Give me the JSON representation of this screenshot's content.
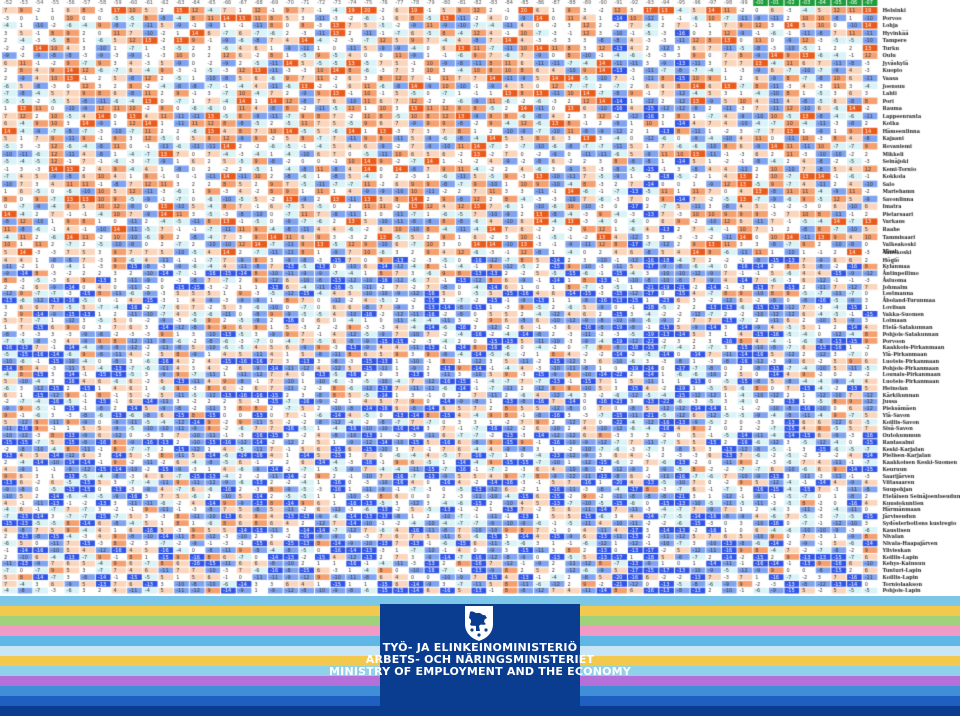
{
  "table": {
    "years": [
      "-52",
      "-53",
      "-54",
      "-55",
      "-56",
      "-57",
      "-58",
      "-59",
      "-60",
      "-61",
      "-62",
      "-63",
      "-64",
      "-65",
      "-66",
      "-67",
      "-68",
      "-69",
      "-70",
      "-71",
      "-72",
      "-73",
      "-74",
      "-75",
      "-76",
      "-77",
      "-78",
      "-79",
      "-80",
      "-81",
      "-82",
      "-83",
      "-84",
      "-85",
      "-86",
      "-87",
      "-88",
      "-89",
      "-90",
      "-91",
      "-92",
      "-93",
      "-94",
      "-95",
      "-96",
      "-97",
      "-98",
      "-99",
      "-00",
      "-01",
      "-02",
      "-03",
      "-04",
      "-05",
      "-06",
      "-07"
    ],
    "regions_top": [
      "Helsinki",
      "Porvoo",
      "Lohja",
      "Hyvinkää",
      "Tampere",
      "Turku",
      "Oulu",
      "Jyväskylä",
      "Kuopio",
      "Vaasa",
      "Joensuu",
      "Lahti",
      "Pori",
      "Rauma",
      "Lappeenranta",
      "Kotka",
      "Hämeenlinna",
      "Kajaani",
      "Rovaniemi",
      "Mikkeli",
      "Seinäjoki",
      "Kemi-Tornio",
      "Kokkola",
      "Salo",
      "Mariehamn",
      "Savonlinna",
      "Imatra",
      "Pietarsaari",
      "Varkaus",
      "Raahe",
      "Tammisaari",
      "Valkeakoski",
      "Äänekoski"
    ],
    "region_label": "Maat",
    "regions_bottom": [
      "Höglö",
      "Kylänmaa",
      "Åntinpeilimo",
      "Åsluoma",
      "Johmalm",
      "Lestmanna",
      "Åboland-Turunmaa",
      "Loviisan",
      "Vakka-Suomen",
      "Loimaan",
      "Etelä-Satakunnan",
      "Pohjois-Satakunnan",
      "Porvoon",
      "Kaakkois-Pirkanmaan",
      "Ylä-Pirkanmaan",
      "Luoteis-Pirkanmaan",
      "Pohjois-Pirkanmaan",
      "Lounais-Pirkanmaan",
      "Luoteis-Pirkanmaan",
      "Heinolan",
      "Kärkikunnan",
      "Jussa",
      "Pieksämäen",
      "Ylä-Savon",
      "Koillis-Savon",
      "Sisä-Savon",
      "Outokummun",
      "Rantasalmi",
      "Keski-Karjalan",
      "Pielisen-Karjalan",
      "Kaakkoisen Keski-Suomen",
      "Keuruun",
      "Saarijärven",
      "Viitasaaren",
      "Suupohjan",
      "Eteläisen Seinäjoentseudun",
      "Kuusiokuntien",
      "Härmänmaan",
      "Järviseudun",
      "Sydösterbottens kustregio",
      "Kaustisen",
      "Nivalan",
      "Nivala-Haapajärven",
      "Ylivieskan",
      "Koillis-Lapin",
      "Kehys-Kainuun",
      "Tunturi-Lapin",
      "Koillis-Lapin",
      "Torniolaakson",
      "Pohjois-Lapin"
    ],
    "green_years_note": "-00 -01 -02 -03 -04 -05 -06 -07"
  },
  "footer": {
    "line1": "TYÖ- JA ELINKEINOMINISTERIÖ",
    "line2": "ARBETS- OCH NÄRINGSMINISTERIET",
    "line3": "MINISTRY OF EMPLOYMENT AND THE ECONOMY",
    "logo_icon": "finnish-lion-crest-icon"
  },
  "colors": {
    "strong_neg": "#2f55e8",
    "mid_neg": "#7fa3f0",
    "light_neg": "#d9f3f7",
    "neutral": "#ffffff",
    "light_pos": "#fbd6bd",
    "mid_pos": "#f6a070",
    "strong_pos": "#ea5a1a",
    "green": "#1e9d3c",
    "ministry_blue": "#0a3d8f"
  }
}
